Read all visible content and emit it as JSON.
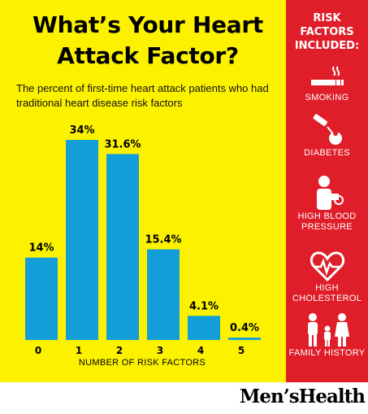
{
  "title": "What’s Your Heart Attack Factor?",
  "subtitle": "The percent of first-time heart attack patients who had traditional heart disease risk factors",
  "chart_data": {
    "type": "bar",
    "categories": [
      "0",
      "1",
      "2",
      "3",
      "4",
      "5"
    ],
    "values": [
      14,
      34,
      31.6,
      15.4,
      4.1,
      0.4
    ],
    "value_labels": [
      "14%",
      "34%",
      "31.6%",
      "15.4%",
      "4.1%",
      "0.4%"
    ],
    "xlabel": "NUMBER OF RISK FACTORS",
    "ylabel": "",
    "ylim": [
      0,
      34
    ],
    "grid": false,
    "bar_color": "#139ed9"
  },
  "sidebar": {
    "title": "RISK FACTORS INCLUDED:",
    "factors": [
      {
        "label": "SMOKING",
        "icon": "cigarette-icon"
      },
      {
        "label": "DIABETES",
        "icon": "glucose-test-icon"
      },
      {
        "label": "HIGH BLOOD PRESSURE",
        "icon": "blood-pressure-icon"
      },
      {
        "label": "HIGH CHOLESTEROL",
        "icon": "heartbeat-icon"
      },
      {
        "label": "FAMILY HISTORY",
        "icon": "family-icon"
      }
    ]
  },
  "brand": "Men’sHealth",
  "colors": {
    "background": "#fcf200",
    "sidebar": "#e01e2a",
    "bars": "#139ed9"
  }
}
